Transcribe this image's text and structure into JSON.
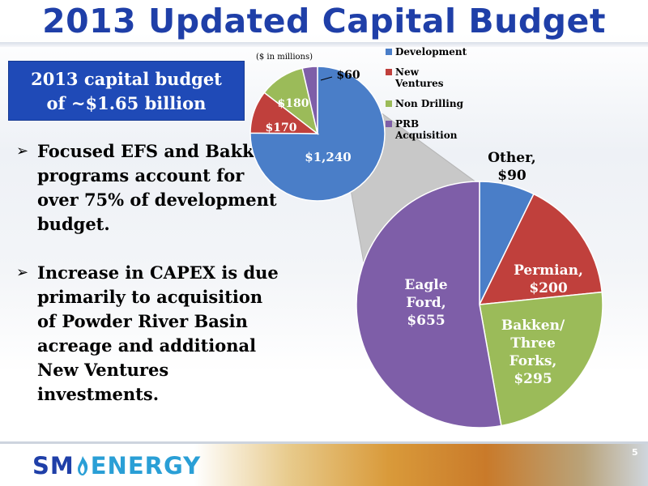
{
  "slide": {
    "title": "2013 Updated Capital Budget",
    "budget_box_line1": "2013 capital budget",
    "budget_box_line2": "of ~$1.65 billion",
    "bullets": [
      "Focused EFS and Bakken programs account for over 75% of development budget.",
      "Increase in CAPEX is due primarily to acquisition of Powder River Basin acreage and additional New Ventures investments."
    ],
    "bullet_symbol": "➢",
    "page_number": "5",
    "logo": {
      "sm": "SM",
      "energy": "ENERGY",
      "icon": "flame-icon"
    }
  },
  "chart_data": [
    {
      "type": "pie",
      "unit_note": "($ in millions)",
      "slices": [
        {
          "name": "Development",
          "value": 1240,
          "label": "$1,240",
          "color": "#4a7ec8"
        },
        {
          "name": "New Ventures",
          "value": 170,
          "label": "$170",
          "color": "#c0403c"
        },
        {
          "name": "Non Drilling",
          "value": 180,
          "label": "$180",
          "color": "#9bbb59"
        },
        {
          "name": "PRB Acquisition",
          "value": 60,
          "label": "$60",
          "color": "#7e5ea8"
        }
      ],
      "legend": [
        "Development",
        "New Ventures",
        "Non Drilling",
        "PRB Acquisition"
      ],
      "legend_position": "right"
    },
    {
      "type": "pie",
      "slices": [
        {
          "name": "Other",
          "value": 90,
          "label_line1": "Other,",
          "label_line2": "$90",
          "color": "#4a7ec8"
        },
        {
          "name": "Permian",
          "value": 200,
          "label_line1": "Permian,",
          "label_line2": "$200",
          "color": "#c0403c"
        },
        {
          "name": "Bakken/Three Forks",
          "value": 295,
          "label_lines": [
            "Bakken/",
            "Three",
            "Forks,",
            "$295"
          ],
          "color": "#9bbb59"
        },
        {
          "name": "Eagle Ford",
          "value": 655,
          "label_lines": [
            "Eagle",
            "Ford,",
            "$655"
          ],
          "color": "#7e5ea8"
        }
      ]
    }
  ]
}
